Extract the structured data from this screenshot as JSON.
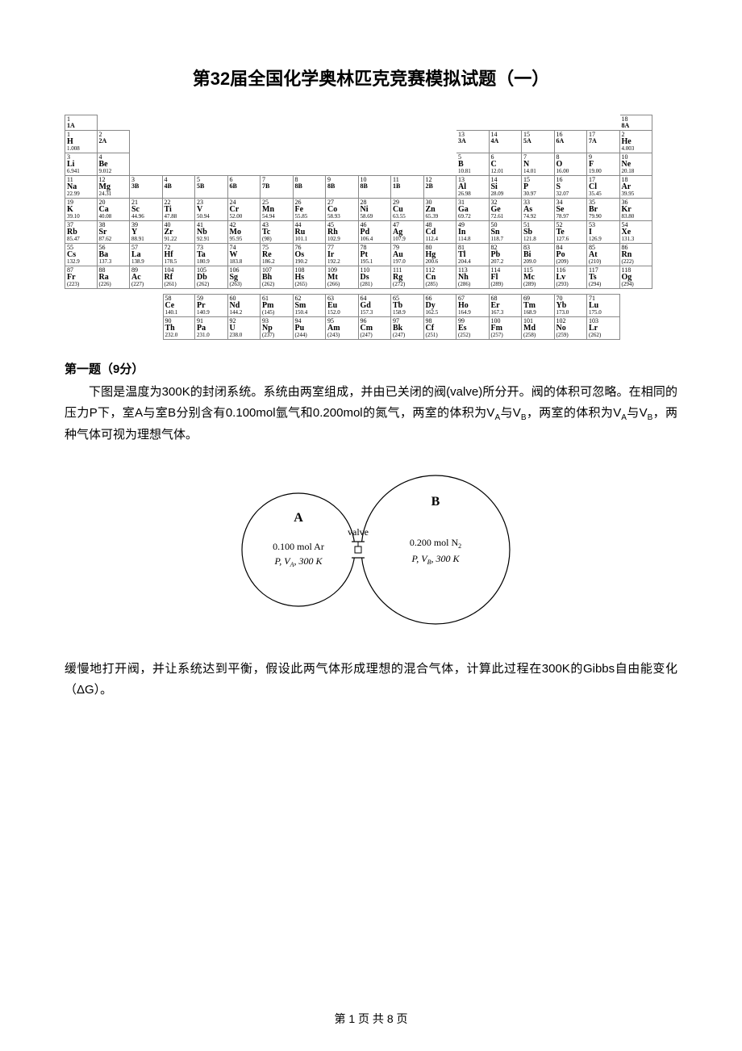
{
  "document": {
    "title": "第32届全国化学奥林匹克竞赛模拟试题（一）",
    "footer_prefix": "第",
    "footer_page": "1",
    "footer_mid": "页  共",
    "footer_total": "8",
    "footer_suffix": "页"
  },
  "periodic_table": {
    "font_family": "Times New Roman, serif",
    "border_color": "#888888",
    "text_color": "#000000",
    "group_labels_row1": {
      "c1": "1",
      "c18": "18"
    },
    "group_labels_row1b": {
      "c1": "1A",
      "c18": "8A"
    },
    "groups_main": [
      "2",
      "2A",
      "13",
      "3A",
      "14",
      "4A",
      "15",
      "5A",
      "16",
      "6A",
      "17",
      "7A"
    ],
    "groups_trans": [
      "3",
      "3B",
      "4",
      "4B",
      "5",
      "5B",
      "6",
      "6B",
      "7",
      "7B",
      "8",
      "8B",
      "9",
      "8B",
      "10",
      "8B",
      "11",
      "1B",
      "12",
      "2B"
    ],
    "elements": {
      "H": {
        "n": "1",
        "s": "H",
        "m": "1.008"
      },
      "He": {
        "n": "2",
        "s": "He",
        "m": "4.003"
      },
      "Li": {
        "n": "3",
        "s": "Li",
        "m": "6.941"
      },
      "Be": {
        "n": "4",
        "s": "Be",
        "m": "9.012"
      },
      "B": {
        "n": "5",
        "s": "B",
        "m": "10.81"
      },
      "C": {
        "n": "6",
        "s": "C",
        "m": "12.01"
      },
      "N": {
        "n": "7",
        "s": "N",
        "m": "14.01"
      },
      "O": {
        "n": "8",
        "s": "O",
        "m": "16.00"
      },
      "F": {
        "n": "9",
        "s": "F",
        "m": "19.00"
      },
      "Ne": {
        "n": "10",
        "s": "Ne",
        "m": "20.18"
      },
      "Na": {
        "n": "11",
        "s": "Na",
        "m": "22.99"
      },
      "Mg": {
        "n": "12",
        "s": "Mg",
        "m": "24.31"
      },
      "Al": {
        "n": "13",
        "s": "Al",
        "m": "26.98"
      },
      "Si": {
        "n": "14",
        "s": "Si",
        "m": "28.09"
      },
      "P": {
        "n": "15",
        "s": "P",
        "m": "30.97"
      },
      "S": {
        "n": "16",
        "s": "S",
        "m": "32.07"
      },
      "Cl": {
        "n": "17",
        "s": "Cl",
        "m": "35.45"
      },
      "Ar": {
        "n": "18",
        "s": "Ar",
        "m": "39.95"
      },
      "K": {
        "n": "19",
        "s": "K",
        "m": "39.10"
      },
      "Ca": {
        "n": "20",
        "s": "Ca",
        "m": "40.08"
      },
      "Sc": {
        "n": "21",
        "s": "Sc",
        "m": "44.96"
      },
      "Ti": {
        "n": "22",
        "s": "Ti",
        "m": "47.88"
      },
      "V": {
        "n": "23",
        "s": "V",
        "m": "50.94"
      },
      "Cr": {
        "n": "24",
        "s": "Cr",
        "m": "52.00"
      },
      "Mn": {
        "n": "25",
        "s": "Mn",
        "m": "54.94"
      },
      "Fe": {
        "n": "26",
        "s": "Fe",
        "m": "55.85"
      },
      "Co": {
        "n": "27",
        "s": "Co",
        "m": "58.93"
      },
      "Ni": {
        "n": "28",
        "s": "Ni",
        "m": "58.69"
      },
      "Cu": {
        "n": "29",
        "s": "Cu",
        "m": "63.55"
      },
      "Zn": {
        "n": "30",
        "s": "Zn",
        "m": "65.39"
      },
      "Ga": {
        "n": "31",
        "s": "Ga",
        "m": "69.72"
      },
      "Ge": {
        "n": "32",
        "s": "Ge",
        "m": "72.61"
      },
      "As": {
        "n": "33",
        "s": "As",
        "m": "74.92"
      },
      "Se": {
        "n": "34",
        "s": "Se",
        "m": "78.97"
      },
      "Br": {
        "n": "35",
        "s": "Br",
        "m": "79.90"
      },
      "Kr": {
        "n": "36",
        "s": "Kr",
        "m": "83.80"
      },
      "Rb": {
        "n": "37",
        "s": "Rb",
        "m": "85.47"
      },
      "Sr": {
        "n": "38",
        "s": "Sr",
        "m": "87.62"
      },
      "Y": {
        "n": "39",
        "s": "Y",
        "m": "88.91"
      },
      "Zr": {
        "n": "40",
        "s": "Zr",
        "m": "91.22"
      },
      "Nb": {
        "n": "41",
        "s": "Nb",
        "m": "92.91"
      },
      "Mo": {
        "n": "42",
        "s": "Mo",
        "m": "95.95"
      },
      "Tc": {
        "n": "43",
        "s": "Tc",
        "m": "(98)"
      },
      "Ru": {
        "n": "44",
        "s": "Ru",
        "m": "101.1"
      },
      "Rh": {
        "n": "45",
        "s": "Rh",
        "m": "102.9"
      },
      "Pd": {
        "n": "46",
        "s": "Pd",
        "m": "106.4"
      },
      "Ag": {
        "n": "47",
        "s": "Ag",
        "m": "107.9"
      },
      "Cd": {
        "n": "48",
        "s": "Cd",
        "m": "112.4"
      },
      "In": {
        "n": "49",
        "s": "In",
        "m": "114.8"
      },
      "Sn": {
        "n": "50",
        "s": "Sn",
        "m": "118.7"
      },
      "Sb": {
        "n": "51",
        "s": "Sb",
        "m": "121.8"
      },
      "Te": {
        "n": "52",
        "s": "Te",
        "m": "127.6"
      },
      "I": {
        "n": "53",
        "s": "I",
        "m": "126.9"
      },
      "Xe": {
        "n": "54",
        "s": "Xe",
        "m": "131.3"
      },
      "Cs": {
        "n": "55",
        "s": "Cs",
        "m": "132.9"
      },
      "Ba": {
        "n": "56",
        "s": "Ba",
        "m": "137.3"
      },
      "La": {
        "n": "57",
        "s": "La",
        "m": "138.9"
      },
      "Hf": {
        "n": "72",
        "s": "Hf",
        "m": "178.5"
      },
      "Ta": {
        "n": "73",
        "s": "Ta",
        "m": "180.9"
      },
      "W": {
        "n": "74",
        "s": "W",
        "m": "183.8"
      },
      "Re": {
        "n": "75",
        "s": "Re",
        "m": "186.2"
      },
      "Os": {
        "n": "76",
        "s": "Os",
        "m": "190.2"
      },
      "Ir": {
        "n": "77",
        "s": "Ir",
        "m": "192.2"
      },
      "Pt": {
        "n": "78",
        "s": "Pt",
        "m": "195.1"
      },
      "Au": {
        "n": "79",
        "s": "Au",
        "m": "197.0"
      },
      "Hg": {
        "n": "80",
        "s": "Hg",
        "m": "200.6"
      },
      "Tl": {
        "n": "81",
        "s": "Tl",
        "m": "204.4"
      },
      "Pb": {
        "n": "82",
        "s": "Pb",
        "m": "207.2"
      },
      "Bi": {
        "n": "83",
        "s": "Bi",
        "m": "209.0"
      },
      "Po": {
        "n": "84",
        "s": "Po",
        "m": "(209)"
      },
      "At": {
        "n": "85",
        "s": "At",
        "m": "(210)"
      },
      "Rn": {
        "n": "86",
        "s": "Rn",
        "m": "(222)"
      },
      "Fr": {
        "n": "87",
        "s": "Fr",
        "m": "(223)"
      },
      "Ra": {
        "n": "88",
        "s": "Ra",
        "m": "(226)"
      },
      "Ac": {
        "n": "89",
        "s": "Ac",
        "m": "(227)"
      },
      "Rf": {
        "n": "104",
        "s": "Rf",
        "m": "(261)"
      },
      "Db": {
        "n": "105",
        "s": "Db",
        "m": "(262)"
      },
      "Sg": {
        "n": "106",
        "s": "Sg",
        "m": "(263)"
      },
      "Bh": {
        "n": "107",
        "s": "Bh",
        "m": "(262)"
      },
      "Hs": {
        "n": "108",
        "s": "Hs",
        "m": "(265)"
      },
      "Mt": {
        "n": "109",
        "s": "Mt",
        "m": "(266)"
      },
      "Ds": {
        "n": "110",
        "s": "Ds",
        "m": "(281)"
      },
      "Rg": {
        "n": "111",
        "s": "Rg",
        "m": "(272)"
      },
      "Cn": {
        "n": "112",
        "s": "Cn",
        "m": "(285)"
      },
      "Nh": {
        "n": "113",
        "s": "Nh",
        "m": "(286)"
      },
      "Fl": {
        "n": "114",
        "s": "Fl",
        "m": "(289)"
      },
      "Mc": {
        "n": "115",
        "s": "Mc",
        "m": "(289)"
      },
      "Lv": {
        "n": "116",
        "s": "Lv",
        "m": "(293)"
      },
      "Ts": {
        "n": "117",
        "s": "Ts",
        "m": "(294)"
      },
      "Og": {
        "n": "118",
        "s": "Og",
        "m": "(294)"
      },
      "Ce": {
        "n": "58",
        "s": "Ce",
        "m": "140.1"
      },
      "Pr": {
        "n": "59",
        "s": "Pr",
        "m": "140.9"
      },
      "Nd": {
        "n": "60",
        "s": "Nd",
        "m": "144.2"
      },
      "Pm": {
        "n": "61",
        "s": "Pm",
        "m": "(145)"
      },
      "Sm": {
        "n": "62",
        "s": "Sm",
        "m": "150.4"
      },
      "Eu": {
        "n": "63",
        "s": "Eu",
        "m": "152.0"
      },
      "Gd": {
        "n": "64",
        "s": "Gd",
        "m": "157.3"
      },
      "Tb": {
        "n": "65",
        "s": "Tb",
        "m": "158.9"
      },
      "Dy": {
        "n": "66",
        "s": "Dy",
        "m": "162.5"
      },
      "Ho": {
        "n": "67",
        "s": "Ho",
        "m": "164.9"
      },
      "Er": {
        "n": "68",
        "s": "Er",
        "m": "167.3"
      },
      "Tm": {
        "n": "69",
        "s": "Tm",
        "m": "168.9"
      },
      "Yb": {
        "n": "70",
        "s": "Yb",
        "m": "173.0"
      },
      "Lu": {
        "n": "71",
        "s": "Lu",
        "m": "175.0"
      },
      "Th": {
        "n": "90",
        "s": "Th",
        "m": "232.0"
      },
      "Pa": {
        "n": "91",
        "s": "Pa",
        "m": "231.0"
      },
      "U": {
        "n": "92",
        "s": "U",
        "m": "238.0"
      },
      "Np": {
        "n": "93",
        "s": "Np",
        "m": "(237)"
      },
      "Pu": {
        "n": "94",
        "s": "Pu",
        "m": "(244)"
      },
      "Am": {
        "n": "95",
        "s": "Am",
        "m": "(243)"
      },
      "Cm": {
        "n": "96",
        "s": "Cm",
        "m": "(247)"
      },
      "Bk": {
        "n": "97",
        "s": "Bk",
        "m": "(247)"
      },
      "Cf": {
        "n": "98",
        "s": "Cf",
        "m": "(251)"
      },
      "Es": {
        "n": "99",
        "s": "Es",
        "m": "(252)"
      },
      "Fm": {
        "n": "100",
        "s": "Fm",
        "m": "(257)"
      },
      "Md": {
        "n": "101",
        "s": "Md",
        "m": "(258)"
      },
      "No": {
        "n": "102",
        "s": "No",
        "m": "(259)"
      },
      "Lr": {
        "n": "103",
        "s": "Lr",
        "m": "(262)"
      }
    },
    "layout": {
      "main_rows": [
        [
          "H",
          null,
          null,
          null,
          null,
          null,
          null,
          null,
          null,
          null,
          null,
          null,
          null,
          null,
          null,
          null,
          null,
          "He"
        ],
        [
          "Li",
          "Be",
          null,
          null,
          null,
          null,
          null,
          null,
          null,
          null,
          null,
          null,
          "B",
          "C",
          "N",
          "O",
          "F",
          "Ne"
        ],
        [
          "Na",
          "Mg",
          null,
          null,
          null,
          null,
          null,
          null,
          null,
          null,
          null,
          null,
          "Al",
          "Si",
          "P",
          "S",
          "Cl",
          "Ar"
        ],
        [
          "K",
          "Ca",
          "Sc",
          "Ti",
          "V",
          "Cr",
          "Mn",
          "Fe",
          "Co",
          "Ni",
          "Cu",
          "Zn",
          "Ga",
          "Ge",
          "As",
          "Se",
          "Br",
          "Kr"
        ],
        [
          "Rb",
          "Sr",
          "Y",
          "Zr",
          "Nb",
          "Mo",
          "Tc",
          "Ru",
          "Rh",
          "Pd",
          "Ag",
          "Cd",
          "In",
          "Sn",
          "Sb",
          "Te",
          "I",
          "Xe"
        ],
        [
          "Cs",
          "Ba",
          "La",
          "Hf",
          "Ta",
          "W",
          "Re",
          "Os",
          "Ir",
          "Pt",
          "Au",
          "Hg",
          "Tl",
          "Pb",
          "Bi",
          "Po",
          "At",
          "Rn"
        ],
        [
          "Fr",
          "Ra",
          "Ac",
          "Rf",
          "Db",
          "Sg",
          "Bh",
          "Hs",
          "Mt",
          "Ds",
          "Rg",
          "Cn",
          "Nh",
          "Fl",
          "Mc",
          "Lv",
          "Ts",
          "Og"
        ]
      ],
      "lanth": [
        "Ce",
        "Pr",
        "Nd",
        "Pm",
        "Sm",
        "Eu",
        "Gd",
        "Tb",
        "Dy",
        "Ho",
        "Er",
        "Tm",
        "Yb",
        "Lu"
      ],
      "act": [
        "Th",
        "Pa",
        "U",
        "Np",
        "Pu",
        "Am",
        "Cm",
        "Bk",
        "Cf",
        "Es",
        "Fm",
        "Md",
        "No",
        "Lr"
      ]
    }
  },
  "question1": {
    "heading": "第一题（9分）",
    "para1": "下图是温度为300K的封闭系统。系统由两室组成，并由已关闭的阀(valve)所分开。阀的体积可忽略。在相同的压力P下，室A与室B分别含有0.100mol氩气和0.200mol的氮气，两室的体积为V",
    "para1_sub1": "A",
    "para1_mid": "与V",
    "para1_sub2": "B",
    "para1_tail1": "，两室的体积为V",
    "para1_sub3": "A",
    "para1_tail2": "与V",
    "para1_sub4": "B",
    "para1_end": "，两种气体可视为理想气体。",
    "diagram": {
      "label_A": "A",
      "label_B": "B",
      "valve_label": "valve",
      "A_line1": "0.100 mol Ar",
      "A_line2_prefix": "P, V",
      "A_line2_sub": "A",
      "A_line2_suffix": ", 300 K",
      "B_line1": "0.200 mol N",
      "B_line1_sub": "2",
      "B_line2_prefix": "P, V",
      "B_line2_sub": "B",
      "B_line2_suffix": ", 300 K",
      "circle_A_radius": 70,
      "circle_B_radius": 92,
      "stroke_color": "#000000",
      "stroke_width": 1.2,
      "font_size_label": 14,
      "font_size_text": 12,
      "font_style": "italic"
    },
    "para2": "缓慢地打开阀，并让系统达到平衡，假设此两气体形成理想的混合气体，计算此过程在300K的Gibbs自由能变化（ΔG）。"
  }
}
